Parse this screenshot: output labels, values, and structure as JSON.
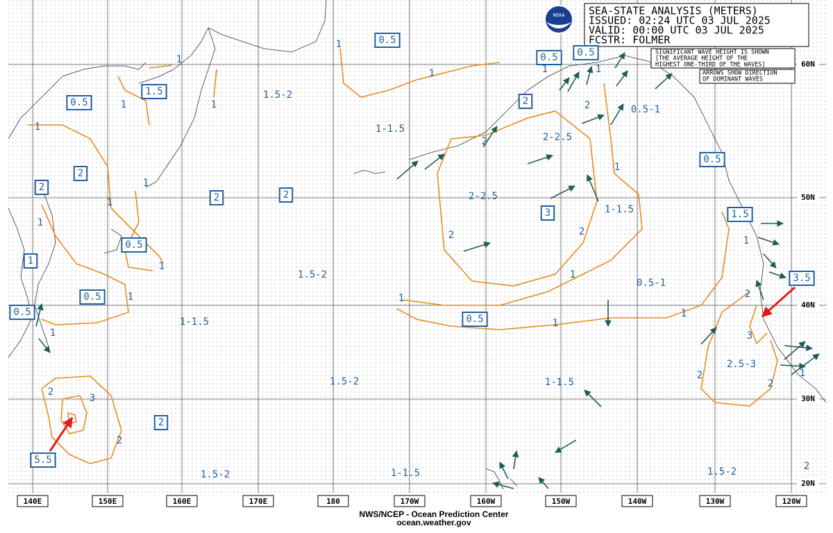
{
  "header": {
    "title": "SEA-STATE ANALYSIS (METERS)",
    "issued": "ISSUED: 02:24 UTC 03 JUL 2025",
    "valid": "VALID:  00:00 UTC 03 JUL 2025",
    "forecaster": "FCSTR: FOLMER",
    "logo": "NOAA"
  },
  "notes": [
    [
      "SIGNIFICANT WAVE HEIGHT IS SHOWN",
      "[THE AVERAGE HEIGHT OF THE",
      "HIGHEST ONE-THIRD OF THE WAVES]"
    ],
    [
      "ARROWS SHOW DIRECTION",
      "OF DOMINANT WAVES"
    ]
  ],
  "lon_labels": [
    "140E",
    "150E",
    "160E",
    "170E",
    "180",
    "170W",
    "160W",
    "150W",
    "140W",
    "130W",
    "120W"
  ],
  "lat_labels": [
    "60N",
    "50N",
    "40N",
    "30N",
    "20N"
  ],
  "boxed_labels": [
    "0.5",
    "1.5",
    "0.5",
    "2",
    "2",
    "2",
    "2",
    "0.5",
    "1",
    "0.5",
    "0.5",
    "0.5",
    "0.5",
    "2",
    "0.5",
    "3",
    "1.5",
    "3.5",
    "0.5",
    "2",
    "5.5"
  ],
  "region_labels": [
    "1.5-2",
    "1-1.5",
    "2-2.5",
    "0.5-1",
    "2-2.5",
    "1-1.5",
    "1.5-2",
    "0.5-1",
    "1-1.5",
    "1.5-2",
    "1-1.5",
    "2.5-3",
    "1.5-2",
    "1-1.5",
    "1.5-2"
  ],
  "contour_labels": [
    "1",
    "1",
    "1",
    "1",
    "1",
    "1",
    "1",
    "1",
    "2",
    "2",
    "1",
    "1",
    "1",
    "1",
    "2",
    "2",
    "1",
    "1",
    "1",
    "1",
    "1",
    "1",
    "2",
    "1",
    "1",
    "3",
    "2",
    "2",
    "3",
    "2",
    "1",
    "2",
    "2"
  ],
  "footer": [
    "NWS/NCEP - Ocean Prediction Center",
    "ocean.weather.gov"
  ]
}
